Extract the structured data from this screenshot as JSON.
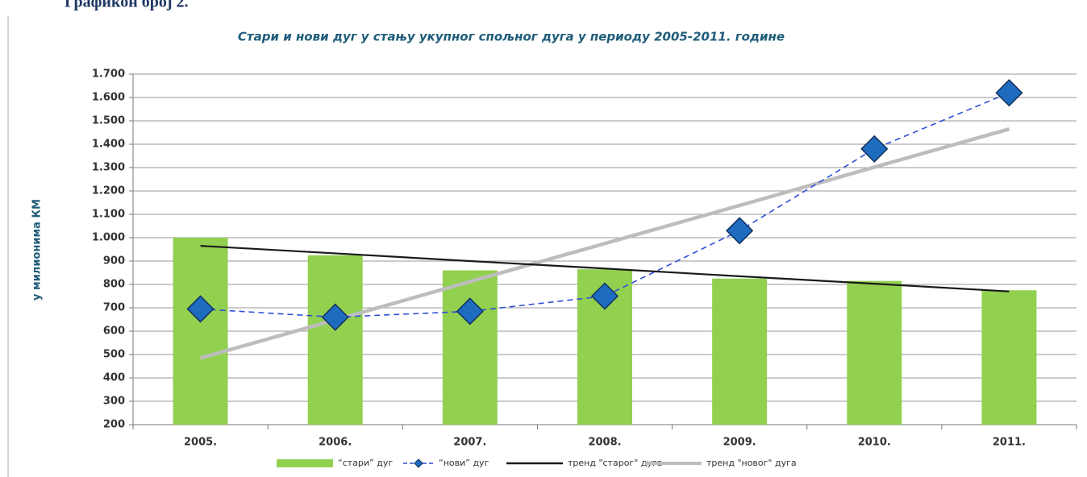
{
  "heading": "Графикон број 2.",
  "chart_data": {
    "type": "bar",
    "title": "Стари и нови дуг у стању укупног спољног дуга у периоду 2005-2011. године",
    "y_label": "у милионима КМ",
    "categories": [
      "2005.",
      "2006.",
      "2007.",
      "2008.",
      "2009.",
      "2010.",
      "2011."
    ],
    "series": [
      {
        "name": "“стари” дуг",
        "type": "bar",
        "color": "#92d050",
        "values": [
          1000,
          925,
          860,
          865,
          825,
          815,
          775
        ]
      },
      {
        "name": "“нови” дуг",
        "type": "line",
        "style": "dashed-diamond",
        "color": "#2e4fd8",
        "values": [
          695,
          660,
          685,
          750,
          1030,
          1380,
          1620
        ]
      },
      {
        "name": "тренд \"старог\" дуга",
        "type": "line",
        "style": "solid",
        "color": "#1a1a1a",
        "values": [
          965,
          933,
          900,
          868,
          835,
          803,
          770
        ]
      },
      {
        "name": "тренд \"новог\" дуга",
        "type": "line",
        "style": "thick",
        "color": "#bdbdbd",
        "values": [
          485,
          648,
          812,
          975,
          1138,
          1302,
          1465
        ]
      }
    ],
    "ylim": [
      200,
      1700
    ],
    "yticks": [
      200,
      300,
      400,
      500,
      600,
      700,
      800,
      900,
      {
        "value": 1000,
        "label": "1.000"
      },
      {
        "value": 1100,
        "label": "1.100"
      },
      {
        "value": 1200,
        "label": "1.200"
      },
      {
        "value": 1300,
        "label": "1.300"
      },
      {
        "value": 1400,
        "label": "1.400"
      },
      {
        "value": 1500,
        "label": "1.500"
      },
      {
        "value": 1600,
        "label": "1.600"
      },
      {
        "value": 1700,
        "label": "1.700"
      }
    ],
    "grid": true,
    "legend": "bottom"
  }
}
